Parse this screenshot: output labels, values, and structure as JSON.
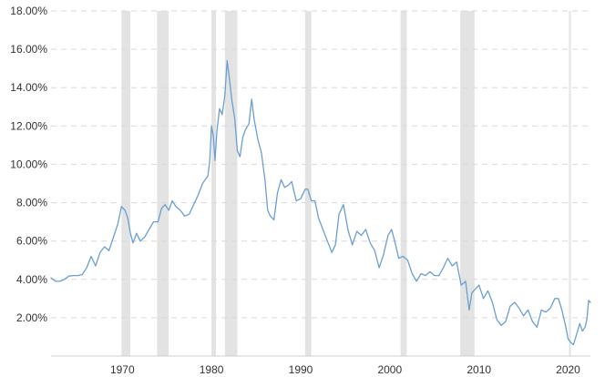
{
  "chart_data": {
    "type": "line",
    "title": "",
    "xlabel": "",
    "ylabel": "",
    "xlim": [
      1962,
      2022.5
    ],
    "ylim": [
      0,
      18
    ],
    "x_ticks": [
      1970,
      1980,
      1990,
      2000,
      2010,
      2020
    ],
    "x_tick_labels": [
      "1970",
      "1980",
      "1990",
      "2000",
      "2010",
      "2020"
    ],
    "y_ticks": [
      2,
      4,
      6,
      8,
      10,
      12,
      14,
      16,
      18
    ],
    "y_tick_labels": [
      "2.00%",
      "4.00%",
      "6.00%",
      "8.00%",
      "10.00%",
      "12.00%",
      "14.00%",
      "16.00%",
      "18.00%"
    ],
    "grid": true,
    "line_color": "#6a9fd4",
    "recession_color": "#e3e3e3",
    "recessions": [
      [
        1969.9,
        1970.9
      ],
      [
        1973.9,
        1975.2
      ],
      [
        1980.0,
        1980.5
      ],
      [
        1981.5,
        1982.9
      ],
      [
        1990.5,
        1991.2
      ],
      [
        2001.2,
        2001.9
      ],
      [
        2007.9,
        2009.5
      ],
      [
        2020.1,
        2020.3
      ]
    ],
    "series": [
      {
        "x": [
          1962.0,
          1962.5,
          1963.0,
          1963.5,
          1964.0,
          1964.5,
          1965.0,
          1965.5,
          1966.0,
          1966.5,
          1967.0,
          1967.5,
          1968.0,
          1968.5,
          1969.0,
          1969.5,
          1969.9,
          1970.3,
          1970.6,
          1970.9,
          1971.2,
          1971.6,
          1972.0,
          1972.5,
          1973.0,
          1973.5,
          1974.0,
          1974.4,
          1974.8,
          1975.2,
          1975.6,
          1976.0,
          1976.5,
          1977.0,
          1977.5,
          1978.0,
          1978.5,
          1979.0,
          1979.3,
          1979.6,
          1979.8,
          1980.0,
          1980.2,
          1980.4,
          1980.6,
          1980.9,
          1981.2,
          1981.5,
          1981.75,
          1982.0,
          1982.3,
          1982.6,
          1982.9,
          1983.2,
          1983.5,
          1983.8,
          1984.2,
          1984.5,
          1984.8,
          1985.2,
          1985.6,
          1986.0,
          1986.3,
          1986.6,
          1987.0,
          1987.4,
          1987.8,
          1988.2,
          1988.6,
          1989.0,
          1989.5,
          1990.0,
          1990.5,
          1990.8,
          1991.2,
          1991.6,
          1992.0,
          1992.5,
          1993.0,
          1993.5,
          1993.9,
          1994.3,
          1994.8,
          1995.3,
          1995.8,
          1996.3,
          1996.8,
          1997.3,
          1997.8,
          1998.3,
          1998.8,
          1999.3,
          1999.8,
          2000.2,
          2000.6,
          2001.0,
          2001.5,
          2002.0,
          2002.5,
          2003.0,
          2003.5,
          2004.0,
          2004.5,
          2005.0,
          2005.5,
          2006.0,
          2006.5,
          2007.0,
          2007.5,
          2008.0,
          2008.5,
          2008.9,
          2009.2,
          2009.6,
          2010.0,
          2010.5,
          2011.0,
          2011.5,
          2012.0,
          2012.5,
          2013.0,
          2013.5,
          2014.0,
          2014.5,
          2015.0,
          2015.5,
          2016.0,
          2016.5,
          2017.0,
          2017.5,
          2018.0,
          2018.5,
          2018.9,
          2019.3,
          2019.7,
          2020.0,
          2020.3,
          2020.6,
          2021.0,
          2021.3,
          2021.6,
          2021.9,
          2022.1,
          2022.3,
          2022.5
        ],
        "values": [
          4.08,
          3.9,
          3.9,
          4.0,
          4.17,
          4.2,
          4.2,
          4.25,
          4.6,
          5.2,
          4.7,
          5.4,
          5.7,
          5.5,
          6.2,
          6.9,
          7.8,
          7.6,
          7.2,
          6.4,
          5.9,
          6.4,
          6.0,
          6.2,
          6.6,
          7.0,
          7.0,
          7.7,
          7.9,
          7.6,
          8.1,
          7.8,
          7.6,
          7.3,
          7.4,
          7.9,
          8.4,
          9.0,
          9.2,
          9.4,
          10.2,
          12.0,
          11.5,
          10.2,
          11.7,
          12.9,
          12.6,
          13.6,
          15.4,
          14.5,
          13.3,
          12.4,
          10.7,
          10.4,
          11.4,
          11.8,
          12.1,
          13.4,
          12.3,
          11.3,
          10.6,
          9.2,
          7.6,
          7.3,
          7.1,
          8.5,
          9.2,
          8.8,
          8.9,
          9.1,
          8.1,
          8.2,
          8.7,
          8.7,
          8.1,
          8.1,
          7.2,
          6.6,
          6.0,
          5.4,
          5.8,
          7.4,
          7.9,
          6.6,
          5.8,
          6.5,
          6.3,
          6.6,
          5.9,
          5.5,
          4.6,
          5.3,
          6.3,
          6.6,
          5.9,
          5.1,
          5.2,
          5.0,
          4.3,
          3.9,
          4.3,
          4.2,
          4.4,
          4.2,
          4.2,
          4.6,
          5.1,
          4.7,
          4.9,
          3.7,
          3.9,
          2.4,
          3.3,
          3.5,
          3.7,
          3.0,
          3.4,
          2.8,
          1.9,
          1.6,
          1.8,
          2.6,
          2.8,
          2.5,
          2.1,
          2.4,
          1.8,
          1.5,
          2.4,
          2.3,
          2.5,
          3.0,
          3.0,
          2.4,
          1.6,
          0.9,
          0.7,
          0.6,
          1.2,
          1.7,
          1.3,
          1.5,
          1.9,
          2.9,
          2.8
        ]
      }
    ]
  }
}
